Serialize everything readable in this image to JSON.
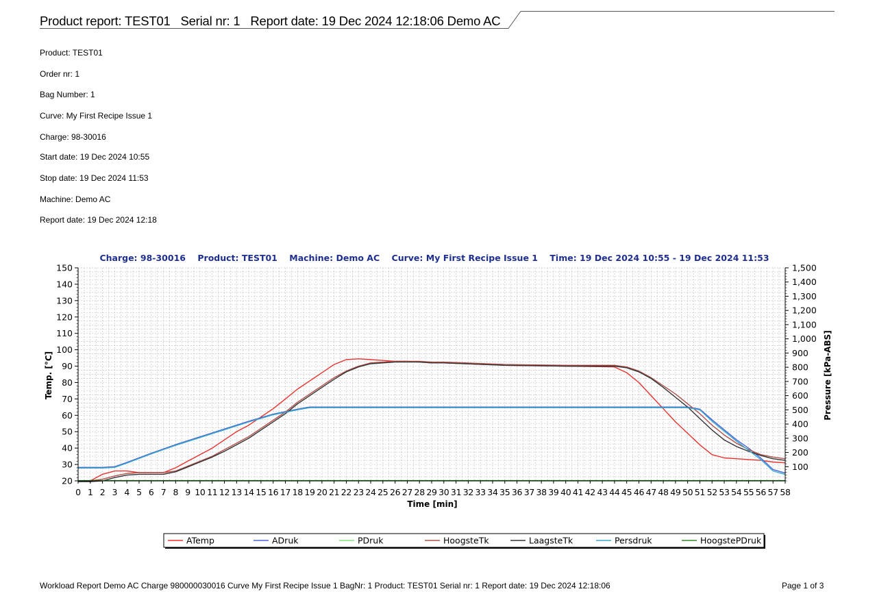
{
  "header": {
    "title": "Product report: TEST01   Serial nr: 1   Report date: 19 Dec 2024 12:18:06 Demo AC"
  },
  "info": {
    "lines": [
      "Product: TEST01",
      "Order nr: 1",
      "Bag Number: 1",
      "Curve: My First Recipe Issue 1",
      "Charge: 98-30016",
      "Start date: 19 Dec 2024 10:55",
      "Stop date: 19 Dec 2024 11:53",
      "Machine: Demo AC",
      "Report date: 19 Dec 2024 12:18"
    ]
  },
  "chart_data": {
    "type": "line",
    "title": "Charge: 98-30016    Product: TEST01    Machine: Demo AC    Curve: My First Recipe Issue 1    Time: 19 Dec 2024 10:55 - 19 Dec 2024 11:53",
    "xlabel": "Time [min]",
    "ylabel": "Temp. [°C]",
    "y2label": "Pressure [kPa-ABS]",
    "xlim": [
      0,
      58
    ],
    "ylim": [
      20,
      150
    ],
    "y2lim": [
      0,
      1500
    ],
    "yticks": [
      20,
      30,
      40,
      50,
      60,
      70,
      80,
      90,
      100,
      110,
      120,
      130,
      140,
      150
    ],
    "y2ticks": [
      100,
      200,
      300,
      400,
      500,
      600,
      700,
      800,
      900,
      1000,
      1100,
      1200,
      1300,
      1400,
      1500
    ],
    "y2tick_labels": [
      "100",
      "200",
      "300",
      "400",
      "500",
      "600",
      "700",
      "800",
      "900",
      "1,000",
      "1,100",
      "1,200",
      "1,300",
      "1,400",
      "1,500"
    ],
    "grid": true,
    "legend_position": "bottom",
    "series": [
      {
        "name": "ATemp",
        "axis": "left",
        "color": "#e8302c",
        "x": [
          0,
          1,
          2,
          3,
          4,
          5,
          6,
          7,
          8,
          9,
          10,
          11,
          12,
          13,
          14,
          15,
          16,
          17,
          18,
          19,
          20,
          21,
          22,
          23,
          24,
          25,
          26,
          27,
          28,
          29,
          30,
          35,
          40,
          44,
          45,
          46,
          47,
          48,
          49,
          50,
          51,
          52,
          53,
          54,
          55,
          56,
          57,
          58
        ],
        "y": [
          20,
          20,
          24,
          26,
          26,
          25,
          25,
          25,
          28,
          32,
          36,
          40,
          45,
          50,
          54,
          59,
          64,
          70,
          76,
          81,
          86,
          91,
          94,
          94.5,
          94,
          93.5,
          93,
          93,
          92.5,
          92,
          92,
          90.5,
          90,
          89.5,
          86,
          80,
          72,
          64,
          56,
          49,
          42,
          36,
          34,
          33.5,
          33,
          32.5,
          31.5,
          31
        ]
      },
      {
        "name": "ADruk",
        "axis": "right",
        "color": "#4a66d8",
        "x": [
          0,
          1,
          2,
          3,
          4,
          6,
          8,
          10,
          12,
          14,
          16,
          18,
          19,
          20,
          30,
          40,
          50,
          51,
          52,
          53,
          54,
          55,
          56,
          57,
          58
        ],
        "y": [
          95,
          95,
          95,
          100,
          130,
          195,
          255,
          310,
          365,
          420,
          470,
          505,
          520,
          520,
          520,
          520,
          520,
          505,
          430,
          360,
          290,
          230,
          160,
          80,
          55
        ]
      },
      {
        "name": "PDruk",
        "axis": "right",
        "color": "#7be07b",
        "x": [
          0,
          58
        ],
        "y": [
          0,
          0
        ]
      },
      {
        "name": "HoogsteTk",
        "axis": "left",
        "color": "#b0504a",
        "x": [
          0,
          1,
          2,
          3,
          4,
          5,
          6,
          7,
          8,
          9,
          10,
          11,
          12,
          13,
          14,
          15,
          16,
          17,
          18,
          19,
          20,
          21,
          22,
          23,
          24,
          25,
          26,
          27,
          28,
          29,
          30,
          35,
          40,
          44,
          45,
          46,
          47,
          48,
          49,
          50,
          51,
          52,
          53,
          54,
          55,
          56,
          57,
          58
        ],
        "y": [
          20,
          20,
          21,
          23,
          24.5,
          25,
          25,
          25,
          26,
          29,
          32,
          35,
          39,
          43,
          47,
          52,
          57,
          62,
          68,
          73,
          78,
          83,
          87,
          90,
          92,
          92.5,
          93,
          93,
          93,
          92.5,
          92.5,
          91,
          90.5,
          90.5,
          89.5,
          87,
          83,
          78,
          73,
          67,
          61,
          54,
          48,
          43,
          39,
          36,
          34.5,
          33.5
        ]
      },
      {
        "name": "LaagsteTk",
        "axis": "left",
        "color": "#333333",
        "x": [
          0,
          1,
          2,
          3,
          4,
          5,
          6,
          7,
          8,
          9,
          10,
          11,
          12,
          13,
          14,
          15,
          16,
          17,
          18,
          19,
          20,
          21,
          22,
          23,
          24,
          25,
          26,
          27,
          28,
          29,
          30,
          35,
          40,
          44,
          45,
          46,
          47,
          48,
          49,
          50,
          51,
          52,
          53,
          54,
          55,
          56,
          57,
          58
        ],
        "y": [
          19.5,
          19.5,
          20,
          22,
          23.5,
          24,
          24,
          24,
          25.5,
          28.5,
          31.5,
          34.5,
          38,
          42,
          46,
          51,
          56,
          61,
          67,
          72,
          77,
          82,
          86.5,
          89.5,
          91.5,
          92,
          92.5,
          92.5,
          92.5,
          92,
          92,
          90.5,
          90,
          90,
          89,
          86.5,
          82.5,
          77,
          71,
          65,
          58,
          51,
          45,
          41,
          38,
          35.5,
          33.5,
          32.5
        ]
      },
      {
        "name": "Persdruk",
        "axis": "right",
        "color": "#3aa8c8",
        "x": [
          0,
          1,
          2,
          3,
          4,
          6,
          8,
          10,
          12,
          14,
          16,
          18,
          19,
          20,
          30,
          40,
          50,
          51,
          52,
          53,
          54,
          55,
          56,
          57,
          58
        ],
        "y": [
          90,
          90,
          90,
          95,
          125,
          190,
          250,
          305,
          360,
          415,
          465,
          500,
          515,
          515,
          515,
          515,
          515,
          500,
          420,
          350,
          280,
          215,
          150,
          70,
          45
        ]
      },
      {
        "name": "HoogstePDruk",
        "axis": "right",
        "color": "#2e8b2e",
        "x": [
          0,
          58
        ],
        "y": [
          2,
          2
        ]
      }
    ]
  },
  "footer": {
    "text": "Workload Report Demo AC Charge 980000030016 Curve My First Recipe Issue 1 BagNr: 1 Product: TEST01 Serial nr: 1 Report date: 19 Dec 2024 12:18:06",
    "page": "Page 1 of 3"
  }
}
